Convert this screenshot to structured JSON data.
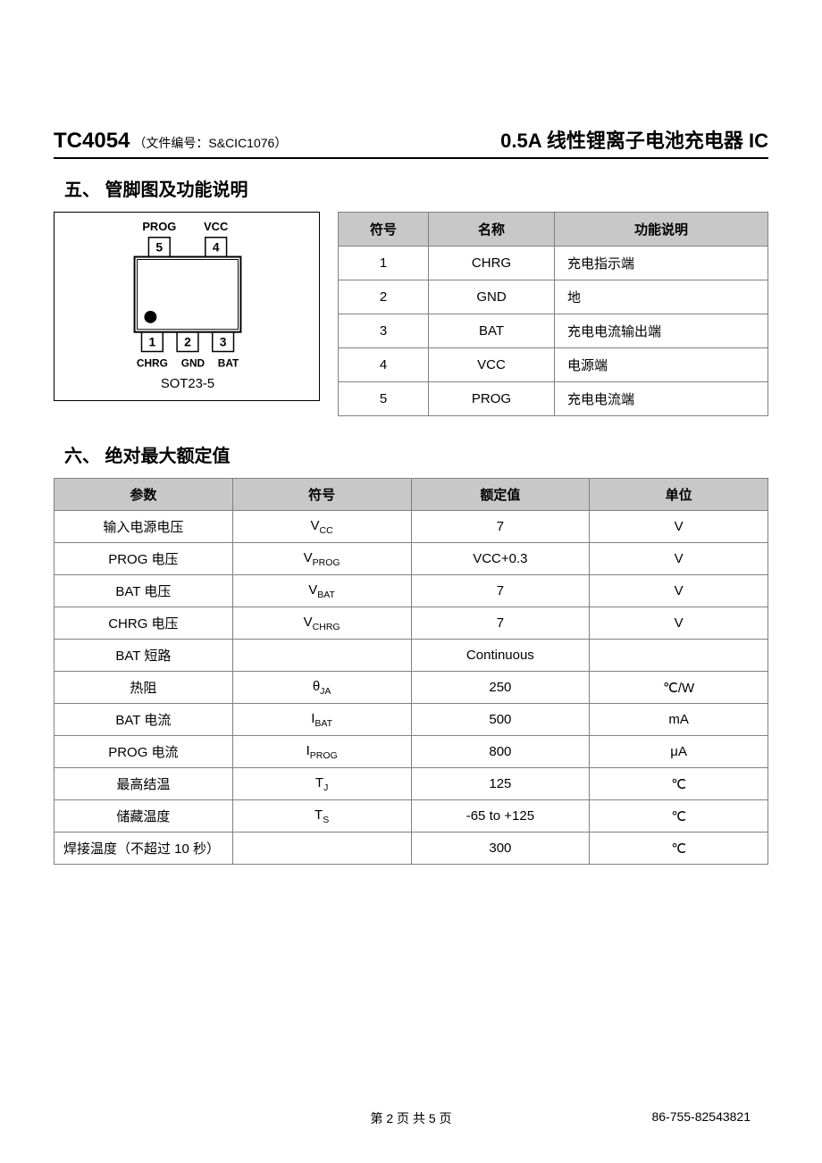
{
  "header": {
    "part_no": "TC4054",
    "doc_code": "（文件编号：S&CIC1076）",
    "product_title": "0.5A 线性锂离子电池充电器 IC"
  },
  "section5": {
    "title": "五、 管脚图及功能说明",
    "diagram": {
      "top_pins": [
        {
          "num": "5",
          "label": "PROG"
        },
        {
          "num": "4",
          "label": "VCC"
        }
      ],
      "bottom_pins": [
        {
          "num": "1",
          "label": "CHRG"
        },
        {
          "num": "2",
          "label": "GND"
        },
        {
          "num": "3",
          "label": "BAT"
        }
      ],
      "package": "SOT23-5"
    },
    "table": {
      "headers": [
        "符号",
        "名称",
        "功能说明"
      ],
      "rows": [
        {
          "sym": "1",
          "name": "CHRG",
          "desc": "充电指示端"
        },
        {
          "sym": "2",
          "name": "GND",
          "desc": "地"
        },
        {
          "sym": "3",
          "name": "BAT",
          "desc": "充电电流输出端"
        },
        {
          "sym": "4",
          "name": "VCC",
          "desc": "电源端"
        },
        {
          "sym": "5",
          "name": "PROG",
          "desc": "充电电流端"
        }
      ]
    }
  },
  "section6": {
    "title": "六、 绝对最大额定值",
    "table": {
      "headers": [
        "参数",
        "符号",
        "额定值",
        "单位"
      ],
      "rows": [
        {
          "param": "输入电源电压",
          "sym_base": "V",
          "sym_sub": "CC",
          "rating": "7",
          "unit": "V"
        },
        {
          "param": "PROG 电压",
          "sym_base": "V",
          "sym_sub": "PROG",
          "rating": "VCC+0.3",
          "unit": "V"
        },
        {
          "param": "BAT 电压",
          "sym_base": "V",
          "sym_sub": "BAT",
          "rating": "7",
          "unit": "V"
        },
        {
          "param": "CHRG 电压",
          "sym_base": "V",
          "sym_sub": "CHRG",
          "rating": "7",
          "unit": "V"
        },
        {
          "param": "BAT 短路",
          "sym_base": "",
          "sym_sub": "",
          "rating": "Continuous",
          "unit": ""
        },
        {
          "param": "热阻",
          "sym_base": "θ",
          "sym_sub": "JA",
          "rating": "250",
          "unit": "℃/W"
        },
        {
          "param": "BAT 电流",
          "sym_base": "I",
          "sym_sub": "BAT",
          "rating": "500",
          "unit": "mA"
        },
        {
          "param": "PROG 电流",
          "sym_base": "I",
          "sym_sub": "PROG",
          "rating": "800",
          "unit": "μA"
        },
        {
          "param": "最高结温",
          "sym_base": "T",
          "sym_sub": "J",
          "rating": "125",
          "unit": "℃"
        },
        {
          "param": "储藏温度",
          "sym_base": "T",
          "sym_sub": "S",
          "rating": "-65 to +125",
          "unit": "℃"
        },
        {
          "param": "焊接温度（不超过 10 秒）",
          "sym_base": "",
          "sym_sub": "",
          "rating": "300",
          "unit": "℃"
        }
      ]
    }
  },
  "footer": {
    "page": "第 2 页 共 5 页",
    "phone": "86-755-82543821"
  },
  "style": {
    "header_border_color": "#000000",
    "table_border_color": "#808080",
    "th_bg": "#c8c8c8",
    "body_bg": "#ffffff",
    "text_color": "#000000"
  }
}
